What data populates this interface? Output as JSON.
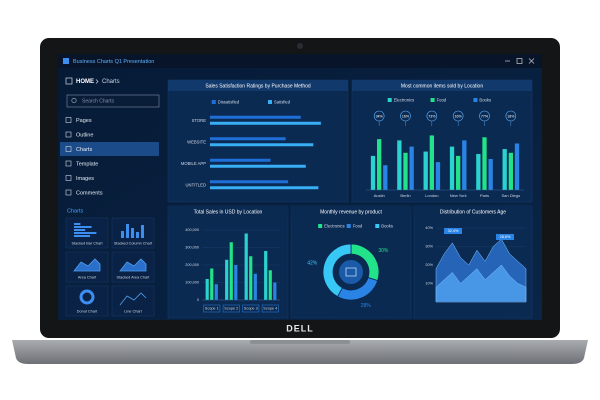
{
  "app": {
    "title": "Business Charts Q1 Presentation",
    "breadcrumb": [
      "HOME",
      "Charts"
    ],
    "search": "Search Charts",
    "nav": [
      "Pages",
      "Outline",
      "Charts",
      "Template",
      "Images",
      "Comments"
    ],
    "section": "Charts",
    "thumbnails": [
      "Stacked Bar Chart",
      "Stacked Column Chart",
      "Area Chart",
      "Stacked Area Chart",
      "Donut Chart",
      "Line Chart"
    ]
  },
  "brand": "DELL",
  "chart_data": [
    {
      "type": "hbar",
      "title": "Sales Satisfaction Ratings by Purchase Method",
      "categories": [
        "STORE",
        "WEBSITE",
        "MOBILE APP",
        "UNTITLED"
      ],
      "series": [
        {
          "name": "Dissatisfied",
          "color": "#1f6fd8",
          "values": [
            72,
            60,
            48,
            62
          ]
        },
        {
          "name": "Satisfied",
          "color": "#38aef5",
          "values": [
            88,
            82,
            76,
            86
          ]
        }
      ],
      "xlim": [
        0,
        100
      ]
    },
    {
      "type": "bar",
      "title": "Most common items sold by Location",
      "categories": [
        "Austin",
        "Berlin",
        "London",
        "New York",
        "Paris",
        "San Diego"
      ],
      "callouts": [
        "34%",
        "16%",
        "73%",
        "16%",
        "77%",
        "18%"
      ],
      "series": [
        {
          "name": "Electronics",
          "color": "#2ad3cf",
          "values": [
            55,
            80,
            62,
            70,
            58,
            66
          ]
        },
        {
          "name": "Food",
          "color": "#22e38a",
          "values": [
            82,
            60,
            88,
            55,
            85,
            60
          ]
        },
        {
          "name": "Books",
          "color": "#2a84e6",
          "values": [
            40,
            70,
            45,
            80,
            50,
            75
          ]
        }
      ],
      "ylim": [
        0,
        100
      ]
    },
    {
      "type": "bar",
      "title": "Total Sales in USD by Location",
      "categories": [
        "Scope 1",
        "Scope 2",
        "Scope 3",
        "Scope 4"
      ],
      "series": [
        {
          "color": "#2ad3cf",
          "values": [
            120000,
            230000,
            380000,
            280000
          ]
        },
        {
          "color": "#22e38a",
          "values": [
            180000,
            330000,
            250000,
            170000
          ]
        },
        {
          "color": "#2a84e6",
          "values": [
            90000,
            200000,
            150000,
            100000
          ]
        }
      ],
      "ylim": [
        0,
        400000
      ],
      "yticks": [
        0,
        {
          "value": 100000,
          "label": "100,000"
        },
        {
          "value": 200000,
          "label": "200,000"
        },
        {
          "value": 300000,
          "label": "300,000"
        },
        {
          "value": 400000,
          "label": "400,000"
        }
      ]
    },
    {
      "type": "donut",
      "title": "Monthly revenue by product",
      "categories": [
        "Electronics",
        "Food",
        "Books"
      ],
      "values": [
        30,
        28,
        42
      ],
      "value_labels": [
        "30%",
        "28%",
        "42%"
      ],
      "colors": [
        "#22e38a",
        "#2a84e6",
        "#38c8f5"
      ]
    },
    {
      "type": "area",
      "title": "Distribution of Customers Age",
      "categories": [
        null,
        null,
        null,
        null,
        null,
        null,
        null,
        null,
        null,
        null,
        null,
        null
      ],
      "callouts": [
        "32.4%",
        "28.6%"
      ],
      "series": [
        {
          "color": "#2a6fc9",
          "values": [
            18,
            26,
            32,
            24,
            20,
            28,
            22,
            30,
            34,
            26,
            22,
            18
          ]
        },
        {
          "color": "#4fa0f0",
          "values": [
            8,
            12,
            16,
            10,
            14,
            18,
            12,
            16,
            20,
            14,
            10,
            8
          ]
        }
      ],
      "ylim": [
        0,
        40
      ],
      "yticks": [
        {
          "value": 10,
          "label": "10%"
        },
        {
          "value": 20,
          "label": "20%"
        },
        {
          "value": 30,
          "label": "30%"
        },
        {
          "value": 40,
          "label": "40%"
        }
      ]
    }
  ]
}
